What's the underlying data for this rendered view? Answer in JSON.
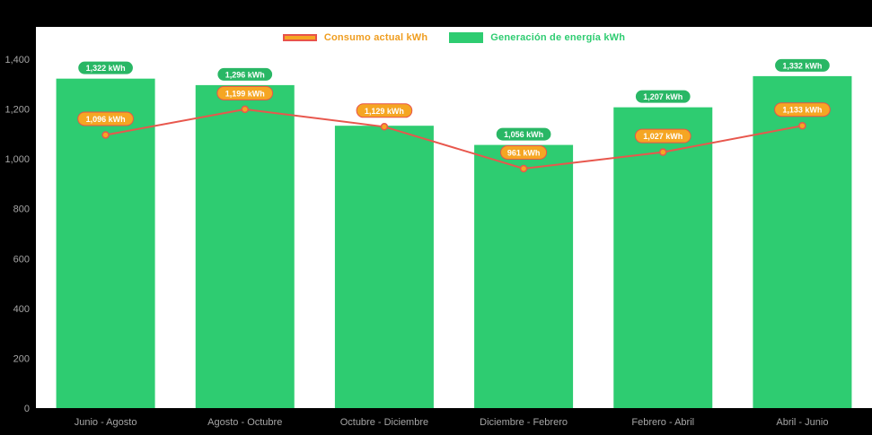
{
  "legend": {
    "items": [
      {
        "id": "consumo",
        "label": "Consumo actual kWh",
        "swatch_fill": "#f5a623",
        "swatch_border": "#e8534a",
        "text_color": "#ef9d1f"
      },
      {
        "id": "generacion",
        "label": "Generación de energía kWh",
        "swatch_fill": "#2ecc71",
        "swatch_border": "#2ecc71",
        "text_color": "#2ecc71"
      }
    ]
  },
  "chart_data": {
    "type": "bar",
    "categories": [
      "Junio - Agosto",
      "Agosto - Octubre",
      "Octubre - Diciembre",
      "Diciembre - Febrero",
      "Febrero - Abril",
      "Abril - Junio"
    ],
    "series": [
      {
        "name": "Generación de energía kWh",
        "type": "bar",
        "color": "#2ecc71",
        "values": [
          1322,
          1296,
          1133,
          1056,
          1207,
          1332
        ],
        "value_labels": [
          "1,322 kWh",
          "1,296 kWh",
          "",
          "1,056 kWh",
          "1,207 kWh",
          "1,332 kWh"
        ],
        "label_fill": "#29b765",
        "label_border": "#ffffff"
      },
      {
        "name": "Consumo actual kWh",
        "type": "line",
        "color": "#e8574d",
        "marker_fill": "#f5a623",
        "values": [
          1096,
          1199,
          1129,
          961,
          1027,
          1133
        ],
        "value_labels": [
          "1,096 kWh",
          "1,199 kWh",
          "1,129 kWh",
          "961 kWh",
          "1,027 kWh",
          "1,133 kWh"
        ],
        "label_fill": "#f5a623",
        "label_border": "#e8534a"
      }
    ],
    "ylim": [
      0,
      1400
    ],
    "ytick_step": 200,
    "ytick_labels": [
      "0",
      "200",
      "400",
      "600",
      "800",
      "1,000",
      "1,200",
      "1,400"
    ],
    "grid": false,
    "legend_position": "top",
    "background": "#000000",
    "plot_background": "#ffffff",
    "axis_text_color": "#a6a6a6"
  }
}
